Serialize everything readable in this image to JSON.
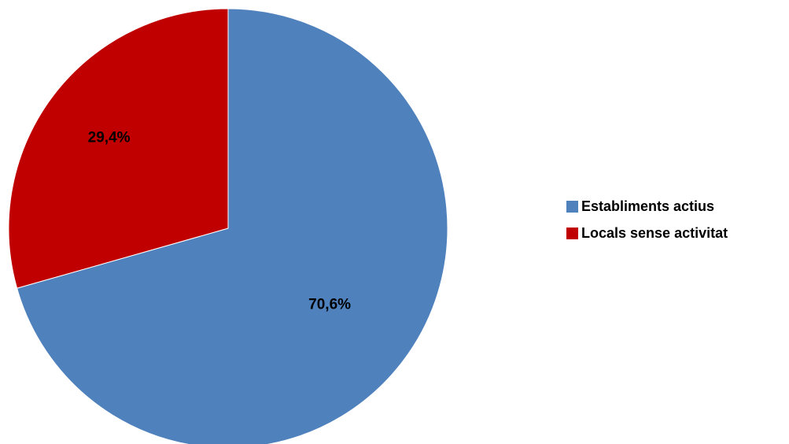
{
  "chart_data": {
    "type": "pie",
    "title": "",
    "categories": [
      "Establiments actius",
      "Locals sense activitat"
    ],
    "values": [
      70.6,
      29.4
    ],
    "data_labels": [
      "70,6%",
      "29,4%"
    ],
    "colors": [
      "#4F81BD",
      "#C00000"
    ],
    "legend": "right"
  }
}
